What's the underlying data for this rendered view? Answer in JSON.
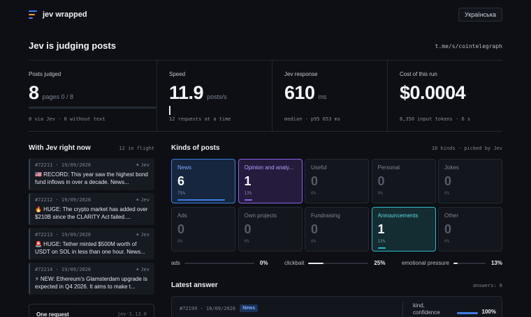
{
  "header": {
    "brand": "jev wrapped",
    "language_button": "Українська"
  },
  "page": {
    "title": "Jev is judging posts",
    "source": "t.me/s/cointelegraph"
  },
  "stats": {
    "posts_judged": {
      "label": "Posts judged",
      "value": "8",
      "unit": "pages 0 / 8",
      "progress": 0,
      "footer": "8 via Jev · 0 without text"
    },
    "speed": {
      "label": "Speed",
      "value": "11.9",
      "unit": "posts/s",
      "footer": "12 requests at a time"
    },
    "response": {
      "label": "Jev response",
      "value": "610",
      "unit": "ms",
      "footer": "median · p95 653 ms"
    },
    "cost": {
      "label": "Cost of this run",
      "value": "$0.0004",
      "footer": "8,350 input tokens · 6 s"
    }
  },
  "feed": {
    "title": "With Jev right now",
    "meta": "12 in flight",
    "items": [
      {
        "id": "#72211 · 19/09/2026",
        "source": "Jev",
        "text": "🇺🇸 RECORD: This year saw the highest bond fund inflows in over a decade. News..."
      },
      {
        "id": "#72212 · 19/09/2026",
        "source": "Jev",
        "text": "🔥 HUGE: The crypto market has added over $210B since the CLARITY Act failed...."
      },
      {
        "id": "#72213 · 19/09/2026",
        "source": "Jev",
        "text": "🚨 HUGE: Tether minted $500M worth of USDT on SOL in less than one hour. News..."
      },
      {
        "id": "#72214 · 19/09/2026",
        "source": "Jev",
        "text": "⚡ NEW: Ethereum's Glamsterdam upgrade is expected in Q4 2026. It aims to make t..."
      }
    ],
    "one_request": {
      "title": "One request",
      "value": "jev-1.13.0"
    }
  },
  "kinds": {
    "title": "Kinds of posts",
    "meta": "10 kinds · picked by Jev",
    "items": [
      {
        "name": "News",
        "count": "6",
        "pct": "75%",
        "share": 0.75,
        "style": "news"
      },
      {
        "name": "Opinion and analy...",
        "count": "1",
        "pct": "13%",
        "share": 0.13,
        "style": "opinion"
      },
      {
        "name": "Useful",
        "count": "0",
        "pct": "0%",
        "share": 0,
        "style": ""
      },
      {
        "name": "Personal",
        "count": "0",
        "pct": "0%",
        "share": 0,
        "style": ""
      },
      {
        "name": "Jokes",
        "count": "0",
        "pct": "0%",
        "share": 0,
        "style": ""
      },
      {
        "name": "Ads",
        "count": "0",
        "pct": "0%",
        "share": 0,
        "style": ""
      },
      {
        "name": "Own projects",
        "count": "0",
        "pct": "0%",
        "share": 0,
        "style": ""
      },
      {
        "name": "Fundraising",
        "count": "0",
        "pct": "0%",
        "share": 0,
        "style": ""
      },
      {
        "name": "Announcements",
        "count": "1",
        "pct": "13%",
        "share": 0.13,
        "style": "ann"
      },
      {
        "name": "Other",
        "count": "0",
        "pct": "0%",
        "share": 0,
        "style": ""
      }
    ]
  },
  "meters": [
    {
      "label": "ads",
      "value": "0%",
      "fraction": 0
    },
    {
      "label": "clickbait",
      "value": "25%",
      "fraction": 0.25
    },
    {
      "label": "emotional pressure",
      "value": "13%",
      "fraction": 0.13
    }
  ],
  "latest": {
    "title": "Latest answer",
    "meta": "answers: 8",
    "post_id": "#72199 · 18/09/2026",
    "tag": "News",
    "confidence_label": "kind, confidence",
    "confidence_value": "100%",
    "confidence": 1.0
  },
  "colors": {
    "background": "#0d0f14",
    "news": "#3f7de4",
    "opinion": "#8b63e6",
    "announcements": "#2fb8c8"
  },
  "icons": {
    "logo": "stacked-bars-logo-icon"
  }
}
